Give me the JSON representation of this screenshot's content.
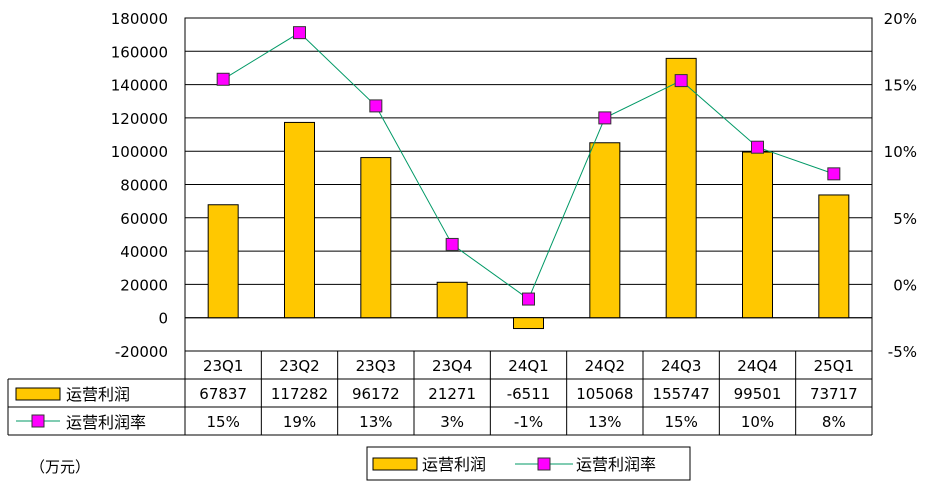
{
  "chart_data": {
    "type": "bar",
    "categories": [
      "23Q1",
      "23Q2",
      "23Q3",
      "23Q4",
      "24Q1",
      "24Q2",
      "24Q3",
      "24Q4",
      "25Q1"
    ],
    "series": [
      {
        "name": "运营利润",
        "type": "bar",
        "axis": "left",
        "values": [
          67837,
          117282,
          96172,
          21271,
          -6511,
          105068,
          155747,
          99501,
          73717
        ],
        "table_labels": [
          "67837",
          "117282",
          "96172",
          "21271",
          "-6511",
          "105068",
          "155747",
          "99501",
          "73717"
        ],
        "color": "#FFC800"
      },
      {
        "name": "运营利润率",
        "type": "line",
        "axis": "right",
        "values": [
          15.4,
          18.9,
          13.4,
          3.0,
          -1.1,
          12.5,
          15.3,
          10.3,
          8.3
        ],
        "table_labels": [
          "15%",
          "19%",
          "13%",
          "3%",
          "-1%",
          "13%",
          "15%",
          "10%",
          "8%"
        ],
        "line_color": "#009966",
        "marker_color": "#FF00FF"
      }
    ],
    "ylim": [
      -20000,
      180000
    ],
    "yticks": [
      -20000,
      0,
      20000,
      40000,
      60000,
      80000,
      100000,
      120000,
      140000,
      160000,
      180000
    ],
    "ytick_labels": [
      "-20000",
      "0",
      "20000",
      "40000",
      "60000",
      "80000",
      "100000",
      "120000",
      "140000",
      "160000",
      "180000"
    ],
    "y2lim": [
      -5,
      20
    ],
    "y2ticks": [
      -5,
      0,
      5,
      10,
      15,
      20
    ],
    "y2tick_labels": [
      "-5%",
      "0%",
      "5%",
      "10%",
      "15%",
      "20%"
    ],
    "unit_note": "（万元）",
    "legend": {
      "placement": "bottom",
      "items": [
        "运营利润",
        "运营利润率"
      ]
    },
    "grid": "horizontal"
  }
}
